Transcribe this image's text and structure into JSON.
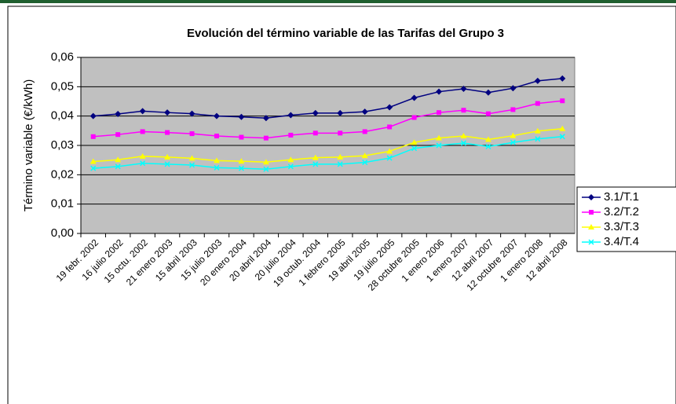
{
  "chart_data": {
    "type": "line",
    "title": "Evolución del término variable de las Tarifas del Grupo 3",
    "ylabel": "Término variable (€/kWh)",
    "categories": [
      "19 febr. 2002",
      "16 julio 2002",
      "15 octu. 2002",
      "21 enero 2003",
      "15 abril 2003",
      "15 julio 2003",
      "20 enero 2004",
      "20 abril 2004",
      "20 julio 2004",
      "19 octub. 2004",
      "1 febrero 2005",
      "19 abril 2005",
      "19 julio 2005",
      "28 octubre 2005",
      "1 enero 2006",
      "1 enero 2007",
      "12 abril 2007",
      "12 octubre 2007",
      "1 enero 2008",
      "12 abril 2008"
    ],
    "series": [
      {
        "name": "3.1/T.1",
        "color": "#000080",
        "marker": "diamond",
        "values": [
          0.04,
          0.0407,
          0.0417,
          0.0412,
          0.0408,
          0.04,
          0.0397,
          0.0393,
          0.0403,
          0.041,
          0.041,
          0.0415,
          0.043,
          0.0462,
          0.0483,
          0.0493,
          0.048,
          0.0495,
          0.052,
          0.0528
        ]
      },
      {
        "name": "3.2/T.2",
        "color": "#ff00ff",
        "marker": "square",
        "values": [
          0.033,
          0.0337,
          0.0347,
          0.0344,
          0.034,
          0.0332,
          0.0328,
          0.0325,
          0.0335,
          0.0342,
          0.0342,
          0.0347,
          0.0363,
          0.0395,
          0.0412,
          0.042,
          0.0408,
          0.0422,
          0.0443,
          0.0452
        ]
      },
      {
        "name": "3.3/T.3",
        "color": "#ffff00",
        "marker": "triangle",
        "values": [
          0.0245,
          0.0251,
          0.0263,
          0.026,
          0.0256,
          0.0248,
          0.0246,
          0.0243,
          0.0251,
          0.0258,
          0.026,
          0.0265,
          0.028,
          0.031,
          0.0325,
          0.0332,
          0.032,
          0.0333,
          0.0349,
          0.0357
        ]
      },
      {
        "name": "3.4/T.4",
        "color": "#00ffff",
        "marker": "x",
        "values": [
          0.0222,
          0.0228,
          0.0239,
          0.0236,
          0.0233,
          0.0224,
          0.0222,
          0.0219,
          0.0228,
          0.0236,
          0.0236,
          0.0242,
          0.0257,
          0.029,
          0.03,
          0.0308,
          0.0296,
          0.031,
          0.0322,
          0.033
        ]
      }
    ],
    "ylim": [
      0,
      0.06
    ],
    "yticks": [
      {
        "value": 0,
        "label": "0,00"
      },
      {
        "value": 0.01,
        "label": "0,01"
      },
      {
        "value": 0.02,
        "label": "0,02"
      },
      {
        "value": 0.03,
        "label": "0,03"
      },
      {
        "value": 0.04,
        "label": "0,04"
      },
      {
        "value": 0.05,
        "label": "0,05"
      },
      {
        "value": 0.06,
        "label": "0,06"
      }
    ],
    "grid": true,
    "plot_background": "#c0c0c0",
    "legend": "right"
  }
}
